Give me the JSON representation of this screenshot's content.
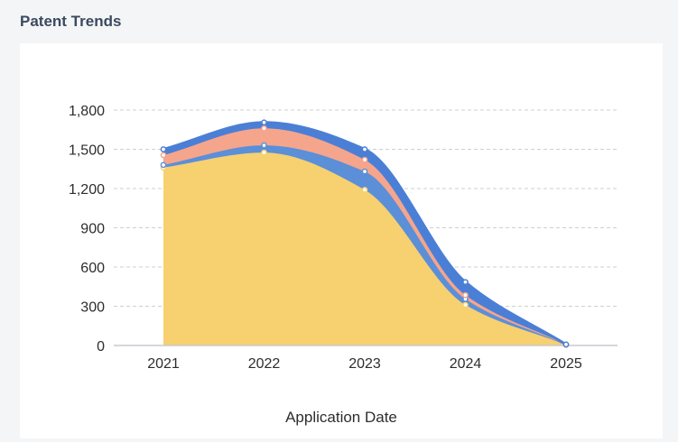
{
  "panel": {
    "title": "Patent Trends"
  },
  "chart_data": {
    "type": "area",
    "stacked": true,
    "smooth": true,
    "title": "",
    "xlabel": "Application Date",
    "ylabel": "",
    "categories": [
      "2021",
      "2022",
      "2023",
      "2024",
      "2025"
    ],
    "ylim": [
      0,
      1800
    ],
    "yticks": [
      0,
      300,
      600,
      900,
      1200,
      1500,
      1800
    ],
    "ytick_labels": [
      "0",
      "300",
      "600",
      "900",
      "1,200",
      "1,500",
      "1,800"
    ],
    "grid": true,
    "series": [
      {
        "values": [
          1360,
          1475,
          1190,
          310,
          5
        ],
        "color": "#f7d070"
      },
      {
        "values": [
          20,
          55,
          140,
          45,
          1
        ],
        "color": "#5b8fd8"
      },
      {
        "values": [
          75,
          130,
          90,
          30,
          1
        ],
        "color": "#f5a58c"
      },
      {
        "values": [
          45,
          45,
          80,
          100,
          1
        ],
        "color": "#4b7fd6"
      }
    ]
  }
}
